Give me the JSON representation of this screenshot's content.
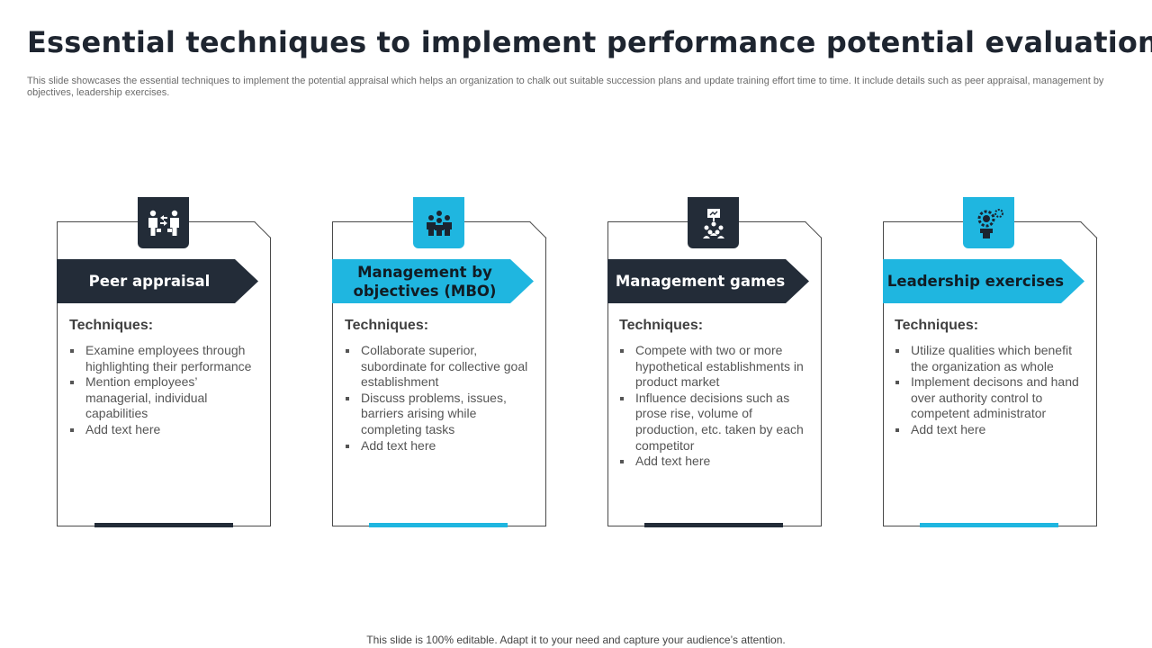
{
  "slide": {
    "title": "Essential techniques to implement performance potential evaluation",
    "subtitle": "This slide showcases the essential techniques to implement the potential appraisal which helps an organization to chalk out suitable succession plans and update training effort time to time. It include details such as peer appraisal, management by objectives, leadership exercises.",
    "footer": "This slide is 100% editable. Adapt it to your need and capture your audience’s attention."
  },
  "colors": {
    "dark": "#232c38",
    "accent": "#1fb6e0",
    "border": "#4a4a4a"
  },
  "cards": [
    {
      "icon": "peer-exchange-icon",
      "heading": "Peer appraisal",
      "techniques_label": "Techniques:",
      "bullets": [
        "Examine employees through highlighting  their performance",
        "Mention employees’ managerial, individual capabilities",
        "Add text here"
      ]
    },
    {
      "icon": "team-group-icon",
      "heading": "Management by objectives (MBO)",
      "techniques_label": "Techniques:",
      "bullets": [
        "Collaborate superior, subordinate for collective goal establishment",
        "Discuss problems, issues, barriers arising while completing tasks",
        "Add text here"
      ]
    },
    {
      "icon": "presentation-audience-icon",
      "heading": "Management games",
      "techniques_label": "Techniques:",
      "bullets": [
        "Compete with two or more hypothetical establishments in product market",
        "Influence decisions such as prose rise, volume of production, etc. taken by each competitor",
        "Add text here"
      ]
    },
    {
      "icon": "leader-gear-icon",
      "heading": "Leadership exercises",
      "techniques_label": "Techniques:",
      "bullets": [
        "Utilize qualities which benefit the organization as whole",
        "Implement decisons and hand over authority control to competent administrator",
        "Add text here"
      ]
    }
  ]
}
